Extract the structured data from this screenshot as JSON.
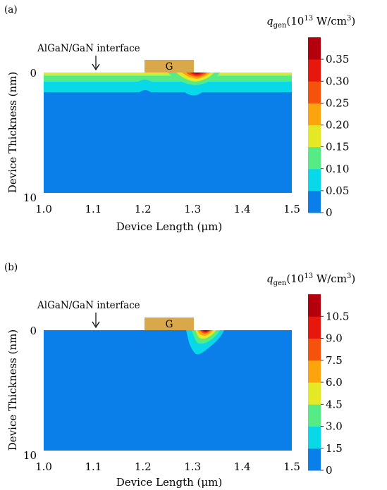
{
  "chart_data": [
    {
      "type": "heatmap",
      "panel_label": "(a)",
      "xlabel": "Device Length (μm)",
      "ylabel": "Device Thickness (nm)",
      "xlim": [
        1.0,
        1.5
      ],
      "ylim": [
        0,
        10
      ],
      "xticks": [
        "1.0",
        "1.1",
        "1.2",
        "1.3",
        "1.4",
        "1.5"
      ],
      "yticks": [
        "0",
        "10"
      ],
      "annotation": "AlGaN/GaN interface",
      "gate_label": "G",
      "gate_x": [
        1.2,
        1.3
      ],
      "colorbar": {
        "label_main": "q",
        "label_sub": "gen",
        "label_unit_pre": "(10",
        "label_unit_exp": "13",
        "label_unit_mid": " W/cm",
        "label_unit_exp2": "3",
        "label_unit_post": ")",
        "ticks": [
          "0",
          "0.05",
          "0.10",
          "0.15",
          "0.20",
          "0.25",
          "0.30",
          "0.35"
        ],
        "colors": [
          "#0a7ee9",
          "#08d8e8",
          "#57eb85",
          "#e4e825",
          "#fca40e",
          "#f6520c",
          "#e6180e",
          "#b4000d"
        ]
      },
      "background_level_color": "#0a7ee9",
      "hotspot": {
        "x": 1.3,
        "depth": 0.2,
        "peak": 0.35
      }
    },
    {
      "type": "heatmap",
      "panel_label": "(b)",
      "xlabel": "Device Length (μm)",
      "ylabel": "Device Thickness (nm)",
      "xlim": [
        1.0,
        1.5
      ],
      "ylim": [
        0,
        10
      ],
      "xticks": [
        "1.0",
        "1.1",
        "1.2",
        "1.3",
        "1.4",
        "1.5"
      ],
      "yticks": [
        "0",
        "10"
      ],
      "annotation": "AlGaN/GaN interface",
      "gate_label": "G",
      "gate_x": [
        1.2,
        1.3
      ],
      "colorbar": {
        "label_main": "q",
        "label_sub": "gen",
        "label_unit_pre": "(10",
        "label_unit_exp": "13",
        "label_unit_mid": " W/cm",
        "label_unit_exp2": "3",
        "label_unit_post": ")",
        "ticks": [
          "0",
          "1.5",
          "3.0",
          "4.5",
          "6.0",
          "7.5",
          "9.0",
          "10.5"
        ],
        "colors": [
          "#0a7ee9",
          "#08d8e8",
          "#57eb85",
          "#e4e825",
          "#fca40e",
          "#f6520c",
          "#e6180e",
          "#b4000d"
        ]
      },
      "background_level_color": "#0a7ee9",
      "hotspot": {
        "x": 1.32,
        "depth": 1.6,
        "peak": 10.5
      }
    }
  ]
}
